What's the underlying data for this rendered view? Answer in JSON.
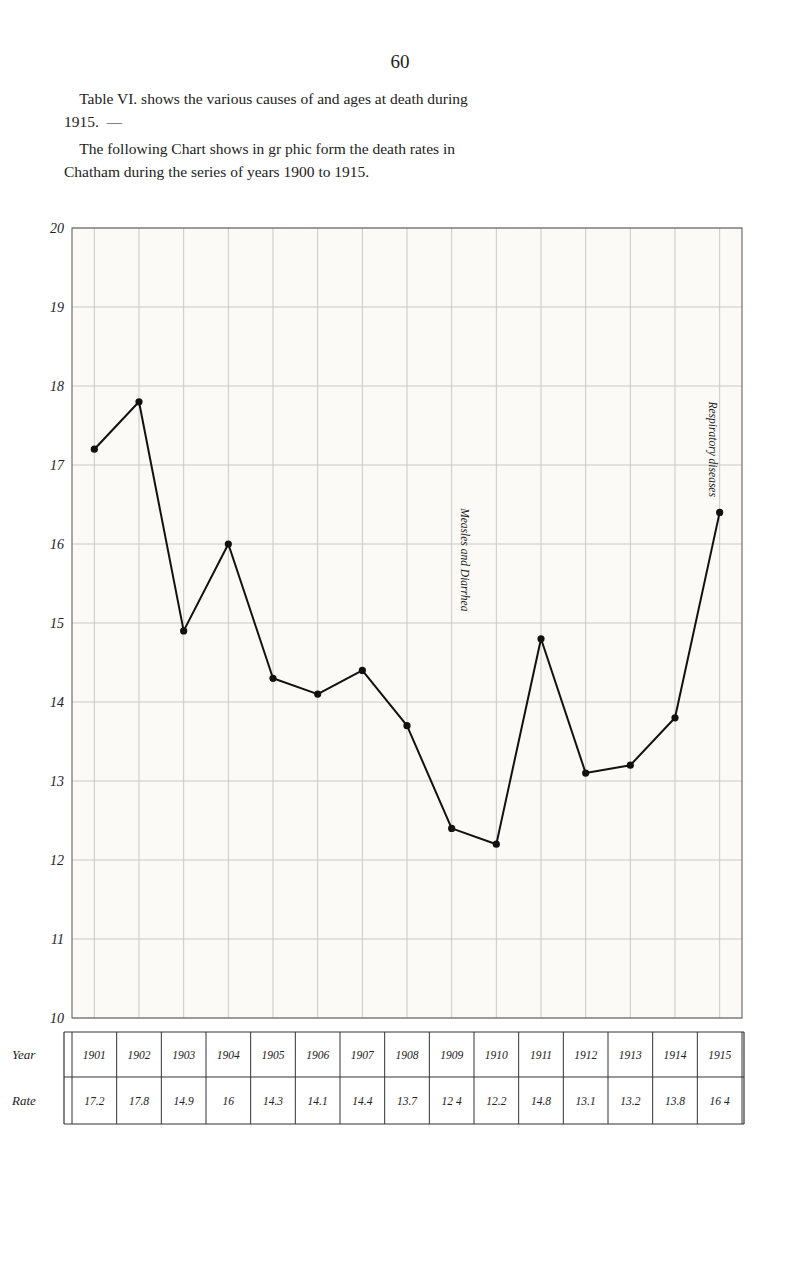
{
  "page_number": "60",
  "text_lines": [
    "    Table VI. shows the various causes of and ages at death during",
    "1915.  —",
    "    The following Chart shows in gr phic form the death rates in",
    "Chatham during the series of years 1900 to 1915."
  ],
  "chart_data": {
    "type": "line",
    "x": [
      1901,
      1902,
      1903,
      1904,
      1905,
      1906,
      1907,
      1908,
      1909,
      1910,
      1911,
      1912,
      1913,
      1914,
      1915
    ],
    "values": [
      17.2,
      17.8,
      14.9,
      16.0,
      14.3,
      14.1,
      14.4,
      13.7,
      12.4,
      12.2,
      14.8,
      13.1,
      13.2,
      13.8,
      16.4
    ],
    "value_labels": [
      "17.2",
      "17.8",
      "14.9",
      "16",
      "14.3",
      "14.1",
      "14.4",
      "13.7",
      "12 4",
      "12.2",
      "14.8",
      "13.1",
      "13.2",
      "13.8",
      "16 4"
    ],
    "row_labels": [
      "Year",
      "Rate"
    ],
    "xlim": [
      1900.5,
      1915.5
    ],
    "xticks": [
      1901,
      1902,
      1903,
      1904,
      1905,
      1906,
      1907,
      1908,
      1909,
      1910,
      1911,
      1912,
      1913,
      1914,
      1915
    ],
    "ylim": [
      10,
      20
    ],
    "yticks": [
      10,
      11,
      12,
      13,
      14,
      15,
      16,
      17,
      18,
      19,
      20
    ],
    "tick_labels": "y",
    "grid": true,
    "color": "#111111",
    "marker": "circle",
    "annotations": [
      {
        "text": "Measles and Diarrhea",
        "x": 1909.3,
        "y": 15.8
      },
      {
        "text": "Respiratory diseases",
        "x": 1914.85,
        "y": 17.2
      }
    ]
  }
}
